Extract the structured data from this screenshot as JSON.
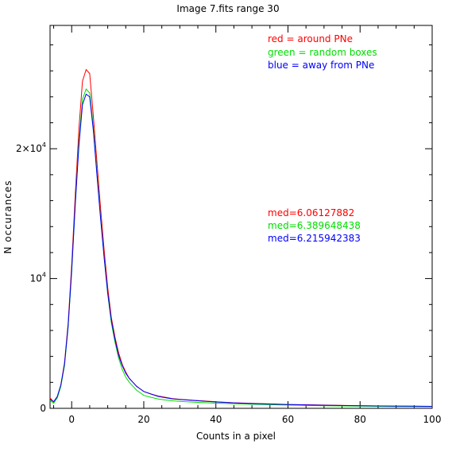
{
  "chart_data": {
    "type": "line",
    "title": "Image 7.fits   range 30",
    "xlabel": "Counts in a pixel",
    "ylabel": "N occurances",
    "xlim": [
      -6,
      100
    ],
    "ylim": [
      0,
      29500
    ],
    "x_ticks": [
      0,
      20,
      40,
      60,
      80,
      100
    ],
    "x_tick_labels": [
      "0",
      "20",
      "40",
      "60",
      "80",
      "100"
    ],
    "y_ticks": [
      0,
      10000,
      20000
    ],
    "y_tick_labels": [
      {
        "base": "0",
        "exp": ""
      },
      {
        "base": "10",
        "exp": "4"
      },
      {
        "base": "2×10",
        "exp": "4"
      }
    ],
    "grid": false,
    "legend_position": "top-right",
    "legend": [
      {
        "label": "red = around PNe",
        "color": "#ff0000"
      },
      {
        "label": "green = random boxes",
        "color": "#00dd00"
      },
      {
        "label": "blue = away from PNe",
        "color": "#0000ff"
      }
    ],
    "annotations": [
      {
        "text": "med=6.06127882",
        "color": "#ff0000"
      },
      {
        "text": "med=6.389648438",
        "color": "#00dd00"
      },
      {
        "text": "med=6.215942383",
        "color": "#0000ff"
      }
    ],
    "series": [
      {
        "color": "#ff0000",
        "x": [
          -6,
          -5,
          -4,
          -3,
          -2,
          -1,
          0,
          1,
          2,
          3,
          4,
          5,
          6,
          7,
          8,
          9,
          10,
          11,
          12,
          13,
          14,
          15,
          16,
          17,
          18,
          19,
          20,
          22,
          24,
          26,
          28,
          30,
          35,
          40,
          45,
          50,
          60,
          70,
          80,
          90,
          100
        ],
        "y": [
          800,
          500,
          900,
          1800,
          3500,
          6500,
          11000,
          16500,
          21500,
          25200,
          26100,
          25800,
          22500,
          19000,
          15500,
          12200,
          9300,
          7000,
          5500,
          4300,
          3400,
          2800,
          2300,
          2000,
          1700,
          1500,
          1300,
          1100,
          950,
          850,
          750,
          700,
          600,
          500,
          430,
          380,
          300,
          250,
          200,
          170,
          150
        ]
      },
      {
        "color": "#00dd00",
        "x": [
          -6,
          -5,
          -4,
          -3,
          -2,
          -1,
          0,
          1,
          2,
          3,
          4,
          5,
          6,
          7,
          8,
          9,
          10,
          11,
          12,
          13,
          14,
          15,
          16,
          17,
          18,
          19,
          20,
          22,
          24,
          26,
          28,
          30,
          35,
          40,
          45,
          50,
          60,
          70,
          80,
          90,
          100
        ],
        "y": [
          600,
          400,
          800,
          1700,
          3300,
          6200,
          10500,
          15800,
          20500,
          23800,
          24600,
          24300,
          21700,
          18200,
          14800,
          11600,
          8800,
          6600,
          5100,
          3900,
          3000,
          2400,
          2000,
          1700,
          1400,
          1200,
          1000,
          850,
          720,
          640,
          580,
          540,
          460,
          400,
          350,
          310,
          250,
          200,
          170,
          140,
          120
        ]
      },
      {
        "color": "#0000ff",
        "x": [
          -6,
          -5,
          -4,
          -3,
          -2,
          -1,
          0,
          1,
          2,
          3,
          4,
          5,
          6,
          7,
          8,
          9,
          10,
          11,
          12,
          13,
          14,
          15,
          16,
          17,
          18,
          19,
          20,
          22,
          24,
          26,
          28,
          30,
          35,
          40,
          45,
          50,
          60,
          70,
          80,
          90,
          100
        ],
        "y": [
          700,
          500,
          900,
          1800,
          3400,
          6300,
          10600,
          15800,
          20200,
          23400,
          24200,
          24000,
          21400,
          18000,
          14700,
          11600,
          8900,
          6800,
          5300,
          4100,
          3300,
          2700,
          2300,
          2000,
          1700,
          1500,
          1300,
          1100,
          920,
          820,
          730,
          680,
          580,
          490,
          420,
          370,
          290,
          240,
          200,
          170,
          150
        ]
      }
    ]
  }
}
